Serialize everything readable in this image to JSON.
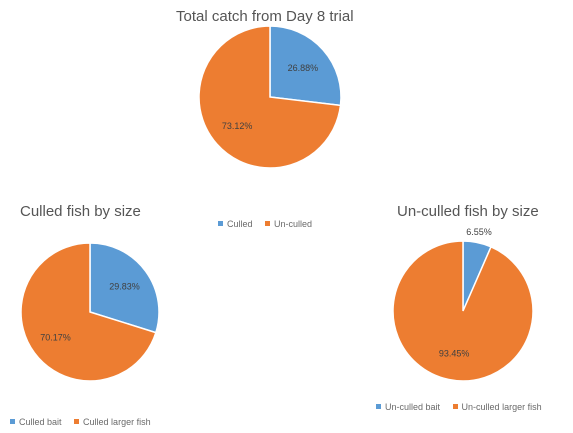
{
  "colors": {
    "blue": "#5b9bd5",
    "orange": "#ed7d31"
  },
  "chart_data": [
    {
      "type": "pie",
      "title": "Total catch from Day 8 trial",
      "categories": [
        "Culled",
        "Un-culled"
      ],
      "values": [
        26.88,
        73.12
      ],
      "data_labels": [
        "26.88%",
        "73.12%"
      ],
      "legend": "bottom"
    },
    {
      "type": "pie",
      "title": "Culled fish by size",
      "categories": [
        "Culled bait",
        "Culled larger fish"
      ],
      "values": [
        29.83,
        70.17
      ],
      "data_labels": [
        "29.83%",
        "70.17%"
      ],
      "legend": "bottom"
    },
    {
      "type": "pie",
      "title": "Un-culled fish by size",
      "categories": [
        "Un-culled bait",
        "Un-culled larger fish"
      ],
      "values": [
        6.55,
        93.45
      ],
      "data_labels": [
        "6.55%",
        "93.45%"
      ],
      "legend": "bottom"
    }
  ]
}
